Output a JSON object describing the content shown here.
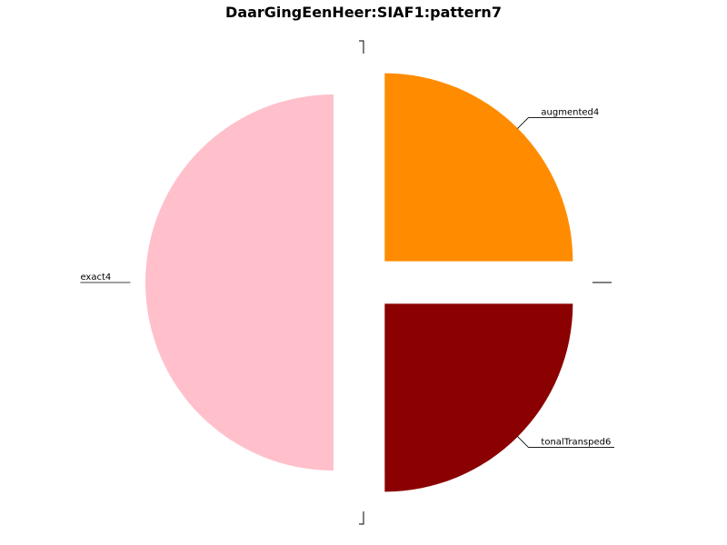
{
  "chart_data": {
    "type": "pie",
    "title": "DaarGingEenHeer:SIAF1:pattern7",
    "slices": [
      {
        "label": "augmented4",
        "value": 1,
        "color": "#ff8c00"
      },
      {
        "label": "tonalTransped6",
        "value": 1,
        "color": "#8b0000"
      },
      {
        "label": "exact4",
        "value": 2,
        "color": "#ffc0cb"
      }
    ],
    "legend": "none"
  }
}
